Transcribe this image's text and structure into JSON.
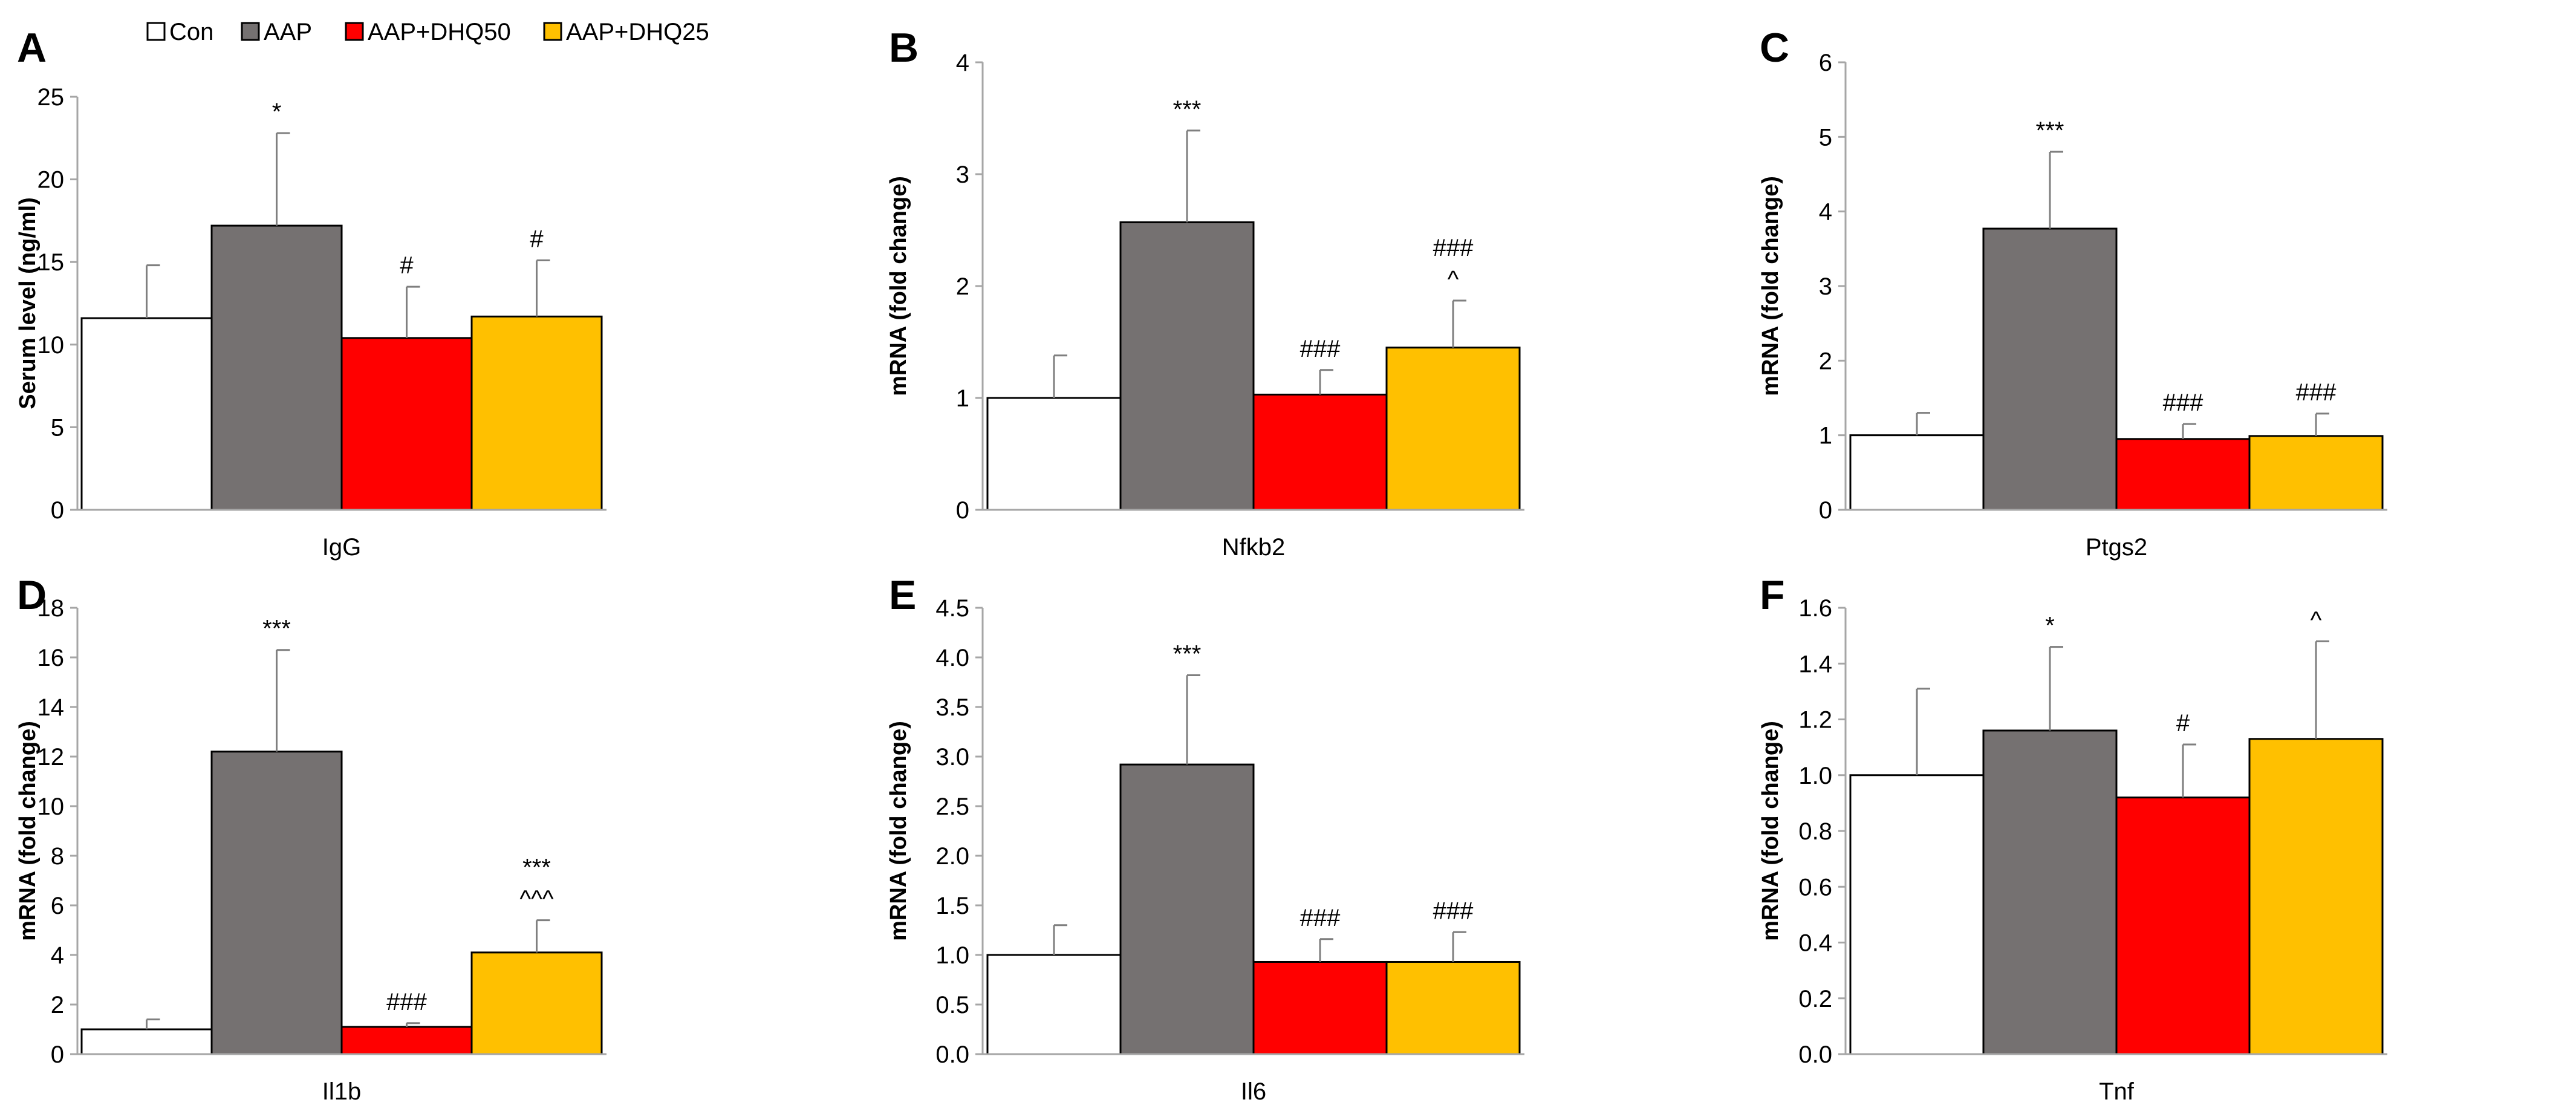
{
  "legend": {
    "entries": [
      {
        "label": "Con",
        "color": "#ffffff"
      },
      {
        "label": "AAP",
        "color": "#757171"
      },
      {
        "label": "AAP+DHQ50",
        "color": "#ff0000"
      },
      {
        "label": "AAP+DHQ25",
        "color": "#ffc000"
      }
    ]
  },
  "chart_data": [
    {
      "panel": "A",
      "type": "bar",
      "ylabel": "Serum level (ng/ml)",
      "category": "IgG",
      "ylim": [
        0,
        25
      ],
      "yticks": [
        0,
        5,
        10,
        15,
        20,
        25
      ],
      "tick_decimals": 0,
      "series": [
        {
          "name": "Con",
          "value": 11.6,
          "error": 3.2,
          "sig": [
            ""
          ]
        },
        {
          "name": "AAP",
          "value": 17.2,
          "error": 5.6,
          "sig": [
            "*"
          ]
        },
        {
          "name": "AAP+DHQ50",
          "value": 10.4,
          "error": 3.1,
          "sig": [
            "#"
          ]
        },
        {
          "name": "AAP+DHQ25",
          "value": 11.7,
          "error": 3.4,
          "sig": [
            "#"
          ]
        }
      ]
    },
    {
      "panel": "B",
      "type": "bar",
      "ylabel": "mRNA (fold change)",
      "category": "Nfkb2",
      "ylim": [
        0,
        4
      ],
      "yticks": [
        0,
        1,
        2,
        3,
        4
      ],
      "tick_decimals": 0,
      "series": [
        {
          "name": "Con",
          "value": 1.0,
          "error": 0.38,
          "sig": [
            ""
          ]
        },
        {
          "name": "AAP",
          "value": 2.57,
          "error": 0.82,
          "sig": [
            "***"
          ]
        },
        {
          "name": "AAP+DHQ50",
          "value": 1.03,
          "error": 0.22,
          "sig": [
            "###"
          ]
        },
        {
          "name": "AAP+DHQ25",
          "value": 1.45,
          "error": 0.42,
          "sig": [
            "###",
            "^"
          ]
        }
      ]
    },
    {
      "panel": "C",
      "type": "bar",
      "ylabel": "mRNA (fold change)",
      "category": "Ptgs2",
      "ylim": [
        0,
        6
      ],
      "yticks": [
        0,
        1,
        2,
        3,
        4,
        5,
        6
      ],
      "tick_decimals": 0,
      "series": [
        {
          "name": "Con",
          "value": 1.0,
          "error": 0.3,
          "sig": [
            ""
          ]
        },
        {
          "name": "AAP",
          "value": 3.77,
          "error": 1.03,
          "sig": [
            "***"
          ]
        },
        {
          "name": "AAP+DHQ50",
          "value": 0.95,
          "error": 0.2,
          "sig": [
            "###"
          ]
        },
        {
          "name": "AAP+DHQ25",
          "value": 0.99,
          "error": 0.3,
          "sig": [
            "###"
          ]
        }
      ]
    },
    {
      "panel": "D",
      "type": "bar",
      "ylabel": "mRNA (fold change)",
      "category": "Il1b",
      "ylim": [
        0,
        18
      ],
      "yticks": [
        0,
        2,
        4,
        6,
        8,
        10,
        12,
        14,
        16,
        18
      ],
      "tick_decimals": 0,
      "series": [
        {
          "name": "Con",
          "value": 1.0,
          "error": 0.4,
          "sig": [
            ""
          ]
        },
        {
          "name": "AAP",
          "value": 12.2,
          "error": 4.1,
          "sig": [
            "***"
          ]
        },
        {
          "name": "AAP+DHQ50",
          "value": 1.1,
          "error": 0.15,
          "sig": [
            "###"
          ]
        },
        {
          "name": "AAP+DHQ25",
          "value": 4.1,
          "error": 1.3,
          "sig": [
            "***",
            "^^^"
          ]
        }
      ]
    },
    {
      "panel": "E",
      "type": "bar",
      "ylabel": "mRNA (fold change)",
      "category": "Il6",
      "ylim": [
        0,
        4.5
      ],
      "yticks": [
        0,
        0.5,
        1,
        1.5,
        2,
        2.5,
        3,
        3.5,
        4,
        4.5
      ],
      "tick_decimals": 1,
      "series": [
        {
          "name": "Con",
          "value": 1.0,
          "error": 0.3,
          "sig": [
            ""
          ]
        },
        {
          "name": "AAP",
          "value": 2.92,
          "error": 0.9,
          "sig": [
            "***"
          ]
        },
        {
          "name": "AAP+DHQ50",
          "value": 0.93,
          "error": 0.23,
          "sig": [
            "###"
          ]
        },
        {
          "name": "AAP+DHQ25",
          "value": 0.93,
          "error": 0.3,
          "sig": [
            "###"
          ]
        }
      ]
    },
    {
      "panel": "F",
      "type": "bar",
      "ylabel": "mRNA (fold change)",
      "category": "Tnf",
      "ylim": [
        0,
        1.6
      ],
      "yticks": [
        0,
        0.2,
        0.4,
        0.6,
        0.8,
        1,
        1.2,
        1.4,
        1.6
      ],
      "tick_decimals": 1,
      "series": [
        {
          "name": "Con",
          "value": 1.0,
          "error": 0.31,
          "sig": [
            ""
          ]
        },
        {
          "name": "AAP",
          "value": 1.16,
          "error": 0.3,
          "sig": [
            "*"
          ]
        },
        {
          "name": "AAP+DHQ50",
          "value": 0.92,
          "error": 0.19,
          "sig": [
            "#"
          ]
        },
        {
          "name": "AAP+DHQ25",
          "value": 1.13,
          "error": 0.35,
          "sig": [
            "^"
          ]
        }
      ]
    }
  ]
}
